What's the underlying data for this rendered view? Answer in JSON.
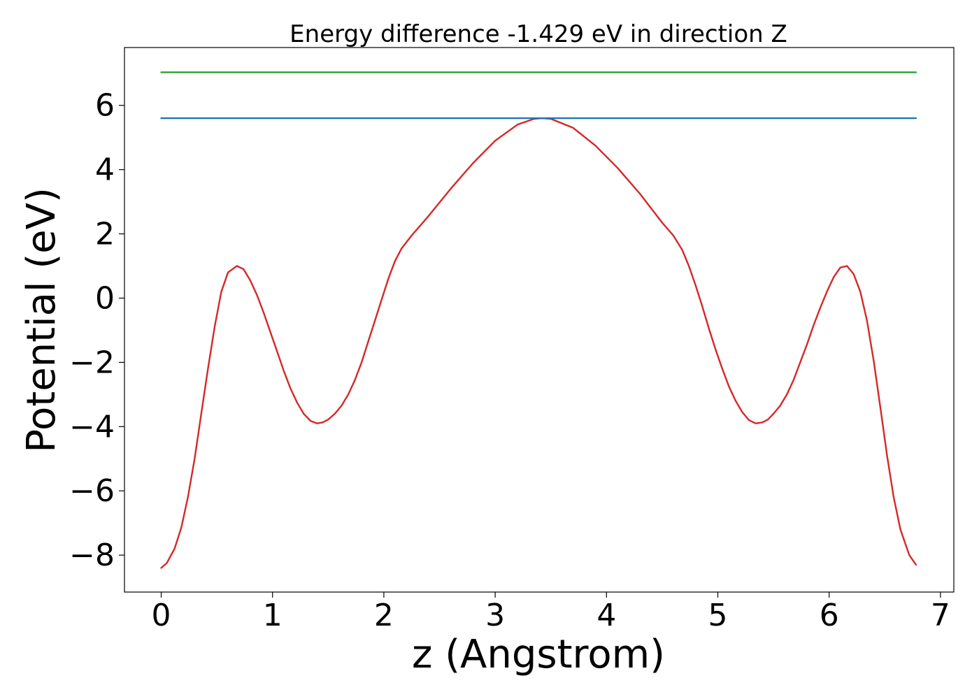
{
  "chart_data": {
    "type": "line",
    "title": "Energy difference -1.429 eV in direction Z",
    "xlabel": "z (Angstrom)",
    "ylabel": "Potential (eV)",
    "xlim": [
      -0.33,
      7.12
    ],
    "ylim": [
      -9.15,
      7.8
    ],
    "x_ticks": [
      0,
      1,
      2,
      3,
      4,
      5,
      6,
      7
    ],
    "x_tick_labels": [
      "0",
      "1",
      "2",
      "3",
      "4",
      "5",
      "6",
      "7"
    ],
    "y_ticks": [
      -8,
      -6,
      -4,
      -2,
      0,
      2,
      4,
      6
    ],
    "y_tick_labels": [
      "−8",
      "−6",
      "−4",
      "−2",
      "0",
      "2",
      "4",
      "6"
    ],
    "grid": false,
    "legend": "none",
    "series": [
      {
        "color": "#d62728",
        "x": [
          0.0,
          0.05,
          0.12,
          0.18,
          0.24,
          0.3,
          0.36,
          0.42,
          0.48,
          0.54,
          0.6,
          0.68,
          0.74,
          0.8,
          0.86,
          0.92,
          0.98,
          1.04,
          1.1,
          1.16,
          1.22,
          1.28,
          1.34,
          1.4,
          1.45,
          1.5,
          1.56,
          1.62,
          1.68,
          1.74,
          1.8,
          1.86,
          1.92,
          1.98,
          2.04,
          2.1,
          2.16,
          2.25,
          2.4,
          2.6,
          2.8,
          3.0,
          3.2,
          3.35,
          3.42,
          3.5,
          3.7,
          3.9,
          4.1,
          4.3,
          4.5,
          4.6,
          4.68,
          4.74,
          4.8,
          4.86,
          4.92,
          4.98,
          5.04,
          5.1,
          5.16,
          5.22,
          5.28,
          5.34,
          5.4,
          5.45,
          5.5,
          5.56,
          5.62,
          5.68,
          5.74,
          5.8,
          5.86,
          5.92,
          5.98,
          6.04,
          6.1,
          6.16,
          6.22,
          6.28,
          6.34,
          6.4,
          6.46,
          6.52,
          6.58,
          6.64,
          6.72,
          6.78
        ],
        "y": [
          -8.4,
          -8.25,
          -7.8,
          -7.15,
          -6.2,
          -5.0,
          -3.6,
          -2.2,
          -0.9,
          0.2,
          0.8,
          1.0,
          0.9,
          0.55,
          0.1,
          -0.45,
          -1.05,
          -1.65,
          -2.25,
          -2.8,
          -3.25,
          -3.6,
          -3.82,
          -3.9,
          -3.87,
          -3.78,
          -3.6,
          -3.35,
          -3.0,
          -2.55,
          -2.0,
          -1.35,
          -0.7,
          -0.05,
          0.6,
          1.15,
          1.55,
          1.95,
          2.55,
          3.4,
          4.2,
          4.9,
          5.4,
          5.58,
          5.6,
          5.58,
          5.3,
          4.75,
          4.05,
          3.25,
          2.35,
          1.95,
          1.5,
          1.0,
          0.4,
          -0.25,
          -0.95,
          -1.6,
          -2.2,
          -2.75,
          -3.2,
          -3.55,
          -3.8,
          -3.9,
          -3.87,
          -3.78,
          -3.6,
          -3.35,
          -3.0,
          -2.55,
          -2.0,
          -1.45,
          -0.85,
          -0.3,
          0.2,
          0.65,
          0.95,
          1.0,
          0.75,
          0.2,
          -0.7,
          -1.95,
          -3.4,
          -4.9,
          -6.2,
          -7.2,
          -8.0,
          -8.3
        ]
      },
      {
        "color": "#1f77b4",
        "x": [
          0.0,
          6.78
        ],
        "y": [
          5.6,
          5.6
        ]
      },
      {
        "color": "#2ca02c",
        "x": [
          0.0,
          6.78
        ],
        "y": [
          7.03,
          7.03
        ]
      }
    ]
  }
}
